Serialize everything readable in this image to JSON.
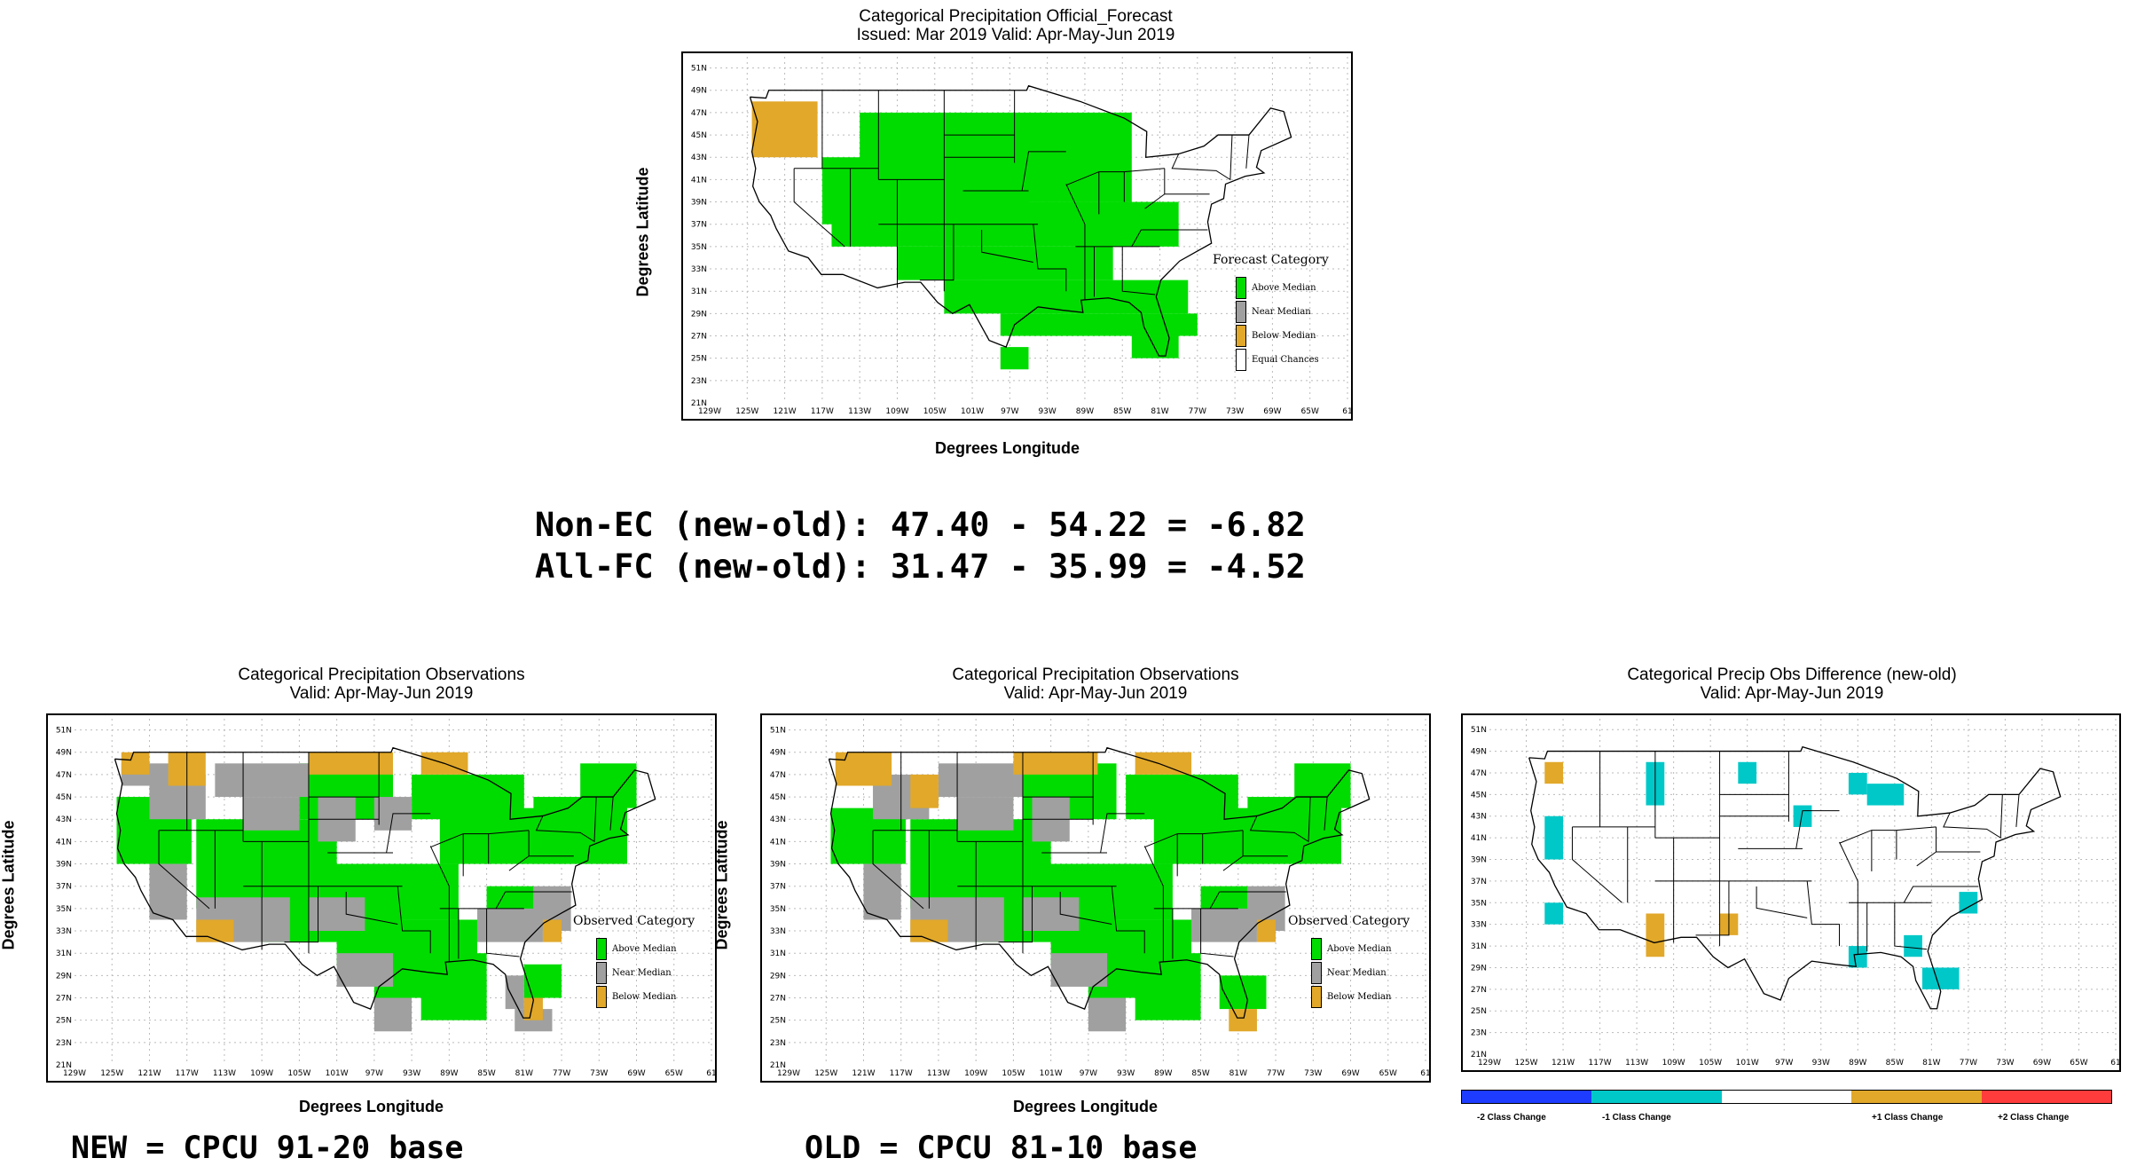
{
  "colors": {
    "above": "#00dc00",
    "near": "#a0a0a0",
    "below": "#e1a82a",
    "equal": "#ffffff",
    "minus2": "#1e3cff",
    "minus1": "#00c8c8",
    "plus1": "#e1a82a",
    "plus2": "#ff3c3c"
  },
  "top_map": {
    "title1": "Categorical Precipitation Official_Forecast",
    "title2": "Issued: Mar 2019 Valid: Apr-May-Jun 2019",
    "ylabel": "Degrees Latitude",
    "xlabel": "Degrees Longitude",
    "legend_title": "Forecast Category",
    "legend": [
      "Above Median",
      "Near Median",
      "Below Median",
      "Equal Chances"
    ]
  },
  "obs_new": {
    "title1": "Categorical Precipitation Observations",
    "title2": "Valid: Apr-May-Jun 2019",
    "ylabel": "Degrees Latitude",
    "xlabel": "Degrees Longitude",
    "legend_title": "Observed Category",
    "legend": [
      "Above Median",
      "Near Median",
      "Below Median"
    ],
    "caption": "NEW = CPCU 91-20 base"
  },
  "obs_old": {
    "title1": "Categorical Precipitation Observations",
    "title2": "Valid: Apr-May-Jun 2019",
    "ylabel": "Degrees Latitude",
    "xlabel": "Degrees Longitude",
    "legend_title": "Observed Category",
    "legend": [
      "Above Median",
      "Near Median",
      "Below Median"
    ],
    "caption": "OLD = CPCU 81-10 base"
  },
  "diff_map": {
    "title1": "Categorical Precip Obs Difference (new-old)",
    "title2": "Valid: Apr-May-Jun 2019",
    "bar_labels": [
      "-2 Class Change",
      "-1 Class Change",
      "+1 Class Change",
      "+2 Class Change"
    ]
  },
  "scores": {
    "line1": "Non-EC (new-old): 47.40 - 54.22 = -6.82",
    "line2": "All-FC (new-old): 31.47 - 35.99 = -4.52"
  },
  "axes": {
    "lon_ticks": [
      "129W",
      "125W",
      "121W",
      "117W",
      "113W",
      "109W",
      "105W",
      "101W",
      "97W",
      "93W",
      "89W",
      "85W",
      "81W",
      "77W",
      "73W",
      "69W",
      "65W",
      "61"
    ],
    "lat_ticks": [
      "21N",
      "23N",
      "25N",
      "27N",
      "29N",
      "31N",
      "33N",
      "35N",
      "37N",
      "39N",
      "41N",
      "43N",
      "45N",
      "47N",
      "49N",
      "51N"
    ],
    "lon_range": [
      -129,
      -61
    ],
    "lat_range": [
      21,
      52
    ]
  }
}
